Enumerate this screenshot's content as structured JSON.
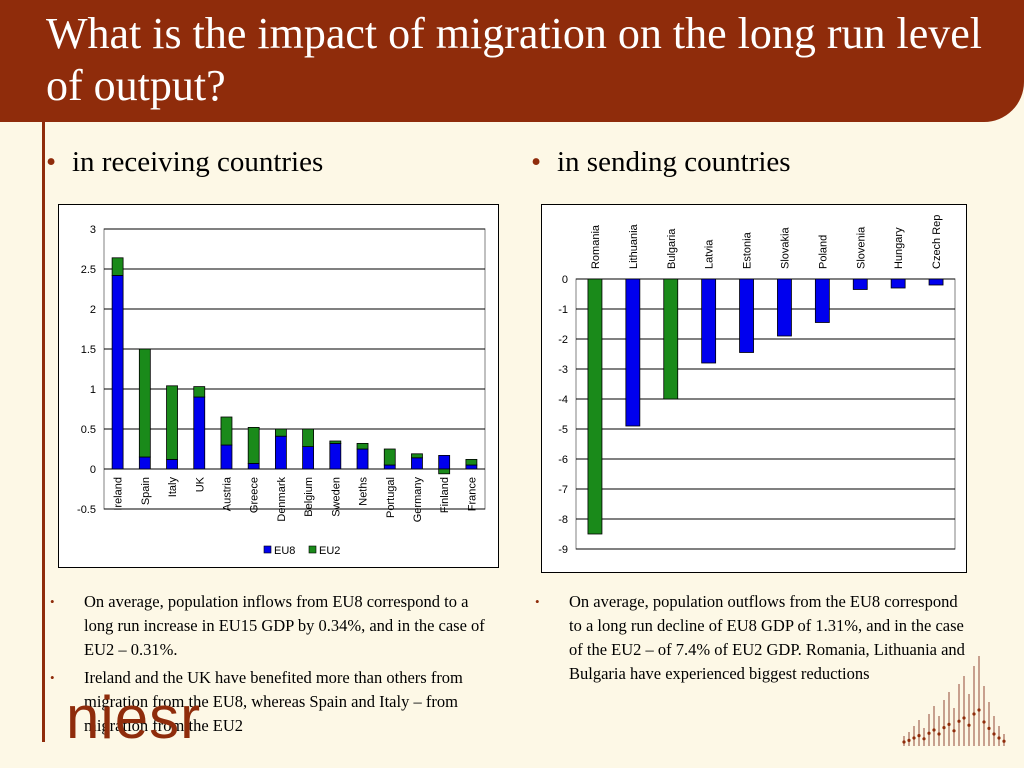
{
  "slide": {
    "title": "What is the impact of migration on the long run level of output?",
    "left_heading": "in receiving countries",
    "right_heading": "in sending countries",
    "bullet_char": "•",
    "left_notes": [
      "On average, population inflows from EU8 correspond to a long run increase in EU15 GDP by 0.34%, and in the case of EU2 – 0.31%.",
      "Ireland and the UK have benefited more than others from migration from the EU8, whereas Spain and Italy – from migration from the EU2"
    ],
    "right_notes": [
      "On average, population outflows from the EU8 correspond to a long run decline of EU8 GDP of 1.31%, and in the case of the EU2 – of 7.4% of EU2 GDP. Romania, Lithuania and Bulgaria have experienced biggest reductions"
    ],
    "logo_text": "niesr",
    "colors": {
      "title_bg": "#8f2c0b",
      "background": "#fdf8e6",
      "eu8": "#0000ee",
      "eu2": "#1a8a1a"
    }
  },
  "chart_data": [
    {
      "type": "bar",
      "stacked": true,
      "categories": [
        "Ireland",
        "Spain",
        "Italy",
        "UK",
        "Austria",
        "Greece",
        "Denmark",
        "Belgium",
        "Sweden",
        "Neths",
        "Portugal",
        "Germany",
        "Finland",
        "France"
      ],
      "series": [
        {
          "name": "EU8",
          "color": "#0000ee",
          "values": [
            2.42,
            0.15,
            0.12,
            0.9,
            0.3,
            0.07,
            0.41,
            0.28,
            0.32,
            0.25,
            0.05,
            0.14,
            0.17,
            0.05
          ]
        },
        {
          "name": "EU2",
          "color": "#1a8a1a",
          "values": [
            0.22,
            1.35,
            0.92,
            0.13,
            0.35,
            0.45,
            0.09,
            0.22,
            0.03,
            0.07,
            0.2,
            0.05,
            -0.06,
            0.07
          ]
        }
      ],
      "yticks": [
        "3",
        "2.5",
        "2",
        "1.5",
        "1",
        "0.5",
        "0",
        "-0.5"
      ],
      "ylim": [
        -0.5,
        3
      ],
      "grid": true,
      "legend": "bottom-center"
    },
    {
      "type": "bar",
      "categories": [
        "Romania",
        "Lithuania",
        "Bulgaria",
        "Latvia",
        "Estonia",
        "Slovakia",
        "Poland",
        "Slovenia",
        "Hungary",
        "Czech Rep"
      ],
      "series": [
        {
          "values": [
            -8.5,
            -4.9,
            -4.0,
            -2.8,
            -2.45,
            -1.9,
            -1.45,
            -0.35,
            -0.3,
            -0.2
          ]
        }
      ],
      "colors": [
        "#1a8a1a",
        "#0000ee",
        "#1a8a1a",
        "#0000ee",
        "#0000ee",
        "#0000ee",
        "#0000ee",
        "#0000ee",
        "#0000ee",
        "#0000ee"
      ],
      "yticks": [
        "0",
        "-1",
        "-2",
        "-3",
        "-4",
        "-5",
        "-6",
        "-7",
        "-8",
        "-9"
      ],
      "ylim": [
        -9,
        0
      ],
      "grid": true,
      "category_labels_position": "top"
    }
  ]
}
